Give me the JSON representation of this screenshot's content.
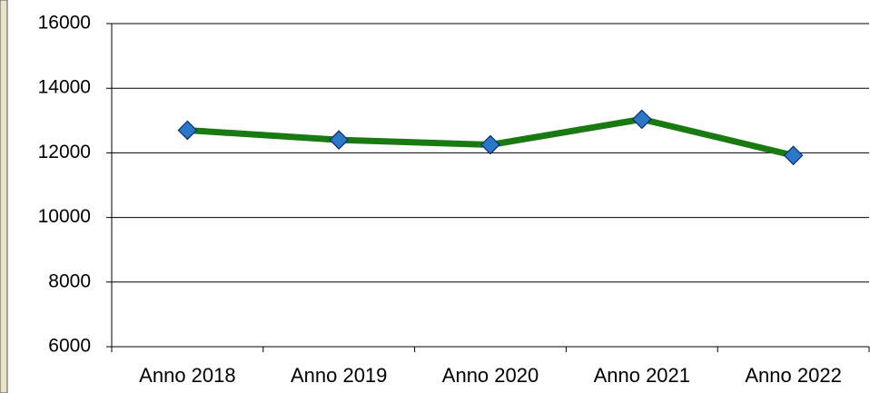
{
  "chart_data": {
    "type": "line",
    "categories": [
      "Anno 2018",
      "Anno 2019",
      "Anno 2020",
      "Anno 2021",
      "Anno 2022"
    ],
    "values": [
      12700,
      12400,
      12250,
      13040,
      11920
    ],
    "color": "#1a7a12",
    "marker_color": "#2b78c8",
    "ylim": [
      6000,
      16000
    ],
    "yticks": [
      6000,
      8000,
      10000,
      12000,
      14000,
      16000
    ],
    "grid": true
  }
}
